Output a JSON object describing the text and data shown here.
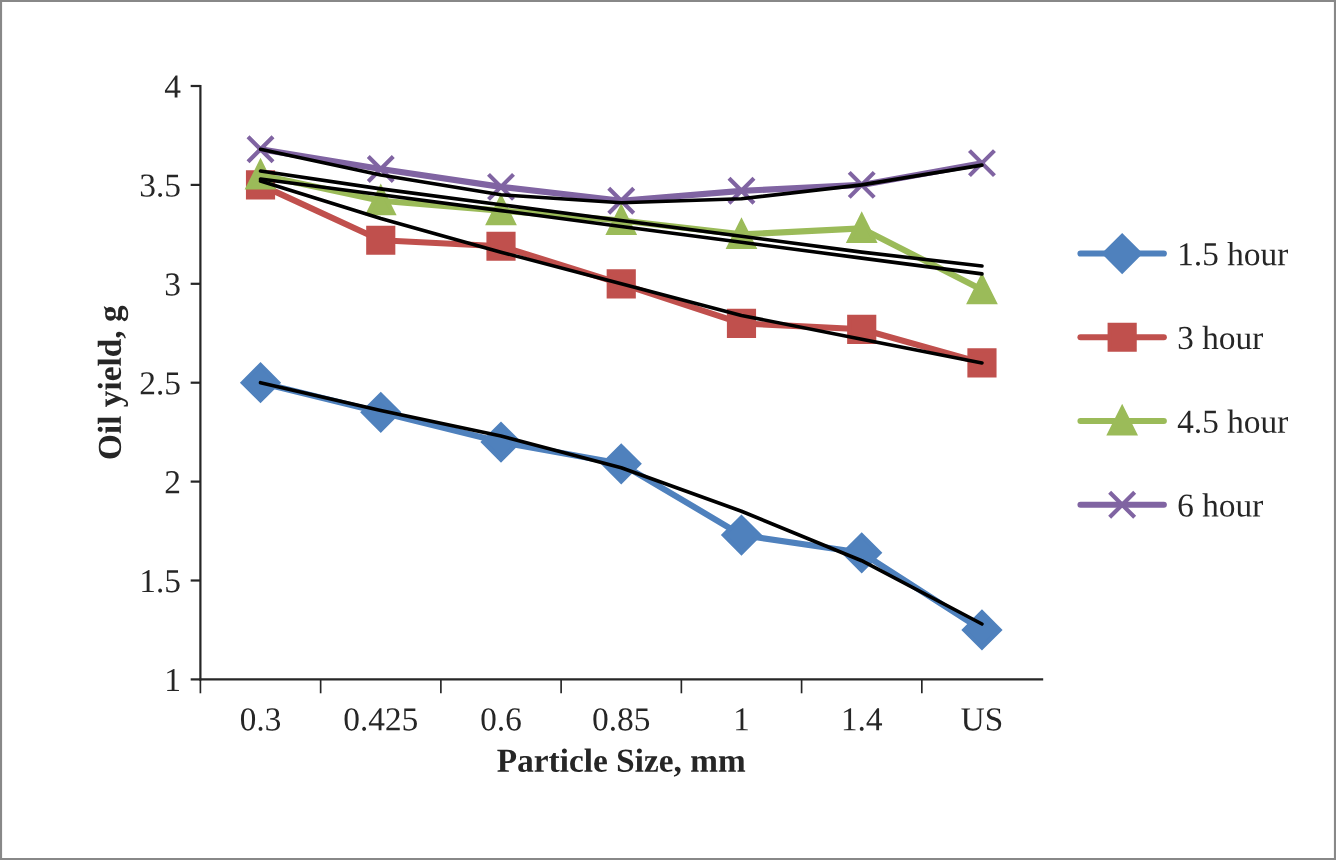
{
  "chart_data": {
    "type": "line",
    "xlabel": "Particle Size, mm",
    "ylabel": "Oil yield, g",
    "categories": [
      "0.3",
      "0.425",
      "0.6",
      "0.85",
      "1",
      "1.4",
      "US"
    ],
    "ylim": [
      1,
      4
    ],
    "yticks": [
      1,
      1.5,
      2,
      2.5,
      3,
      3.5,
      4
    ],
    "grid": false,
    "legend": "right",
    "series": [
      {
        "name": "1.5 hour",
        "color": "#4f81bd",
        "marker": "diamond",
        "values": [
          2.5,
          2.35,
          2.2,
          2.09,
          1.73,
          1.64,
          1.25
        ]
      },
      {
        "name": "3 hour",
        "color": "#c0504d",
        "marker": "square",
        "values": [
          3.5,
          3.22,
          3.19,
          3.0,
          2.8,
          2.77,
          2.6
        ]
      },
      {
        "name": "4.5 hour",
        "color": "#9bbb59",
        "marker": "triangle",
        "values": [
          3.55,
          3.42,
          3.37,
          3.32,
          3.25,
          3.28,
          2.97
        ]
      },
      {
        "name": "6 hour",
        "color": "#8064a2",
        "marker": "cross",
        "values": [
          3.68,
          3.58,
          3.49,
          3.42,
          3.47,
          3.5,
          3.61
        ]
      },
      {
        "color": "#000000",
        "marker": "none",
        "values": [
          2.5,
          2.36,
          2.23,
          2.07,
          1.85,
          1.6,
          1.28
        ]
      },
      {
        "color": "#000000",
        "marker": "none",
        "values": [
          3.52,
          3.33,
          3.16,
          3.0,
          2.84,
          2.72,
          2.6
        ]
      },
      {
        "color": "#000000",
        "marker": "none",
        "values": [
          3.57,
          3.48,
          3.4,
          3.32,
          3.24,
          3.16,
          3.09
        ]
      },
      {
        "color": "#000000",
        "marker": "none",
        "values": [
          3.53,
          3.45,
          3.37,
          3.29,
          3.21,
          3.13,
          3.05
        ]
      },
      {
        "color": "#000000",
        "marker": "none",
        "values": [
          3.68,
          3.55,
          3.45,
          3.41,
          3.43,
          3.5,
          3.6
        ]
      }
    ]
  }
}
